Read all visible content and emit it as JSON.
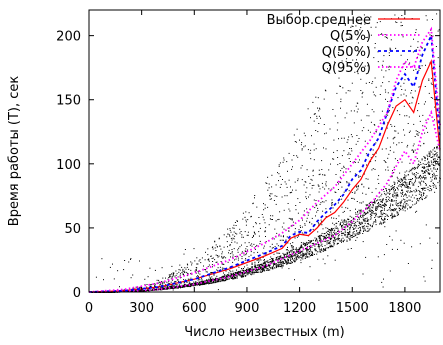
{
  "chart_data": {
    "type": "line",
    "title": "",
    "xlabel": "Число неизвестных (m)",
    "ylabel": "Время работы (T), сек",
    "xlim": [
      0,
      2000
    ],
    "ylim": [
      0,
      220
    ],
    "xticks": [
      0,
      300,
      600,
      900,
      1200,
      1500,
      1800
    ],
    "yticks": [
      0,
      50,
      100,
      150,
      200
    ],
    "grid": false,
    "legend_position": "top-right",
    "scatter": {
      "description_only": true,
      "color": "#000000"
    },
    "series": [
      {
        "name": "Выбор.среднее",
        "color": "#ff0000",
        "style": "solid",
        "x": [
          0,
          200,
          400,
          600,
          800,
          1000,
          1100,
          1150,
          1200,
          1250,
          1300,
          1350,
          1400,
          1450,
          1500,
          1550,
          1600,
          1650,
          1700,
          1750,
          1800,
          1850,
          1900,
          1950,
          2000
        ],
        "y": [
          0,
          1,
          4,
          10,
          18,
          28,
          34,
          42,
          45,
          44,
          50,
          58,
          62,
          70,
          80,
          88,
          102,
          112,
          130,
          145,
          150,
          140,
          165,
          180,
          110
        ]
      },
      {
        "name": "Q(5%)",
        "color": "#ff00ff",
        "style": "dotted",
        "x": [
          0,
          200,
          400,
          600,
          800,
          1000,
          1100,
          1200,
          1300,
          1400,
          1500,
          1600,
          1700,
          1750,
          1800,
          1850,
          1900,
          1950,
          2000
        ],
        "y": [
          0,
          0.5,
          2,
          6,
          12,
          20,
          26,
          32,
          38,
          44,
          55,
          68,
          85,
          98,
          110,
          100,
          125,
          140,
          110
        ]
      },
      {
        "name": "Q(50%)",
        "color": "#0000ff",
        "style": "dashed",
        "x": [
          0,
          200,
          400,
          600,
          800,
          1000,
          1100,
          1150,
          1200,
          1250,
          1300,
          1350,
          1400,
          1450,
          1500,
          1550,
          1600,
          1650,
          1700,
          1750,
          1800,
          1850,
          1900,
          1950,
          2000
        ],
        "y": [
          0,
          1,
          4,
          10,
          19,
          30,
          36,
          44,
          47,
          46,
          55,
          62,
          68,
          76,
          88,
          95,
          110,
          120,
          140,
          160,
          170,
          160,
          185,
          200,
          120
        ]
      },
      {
        "name": "Q(95%)",
        "color": "#ff00ff",
        "style": "dotted",
        "x": [
          0,
          200,
          400,
          600,
          800,
          1000,
          1100,
          1200,
          1300,
          1400,
          1500,
          1600,
          1700,
          1750,
          1800,
          1850,
          1900,
          1950,
          2000
        ],
        "y": [
          0,
          2,
          7,
          15,
          25,
          38,
          46,
          56,
          70,
          82,
          100,
          118,
          140,
          165,
          180,
          175,
          195,
          205,
          130
        ]
      }
    ]
  }
}
